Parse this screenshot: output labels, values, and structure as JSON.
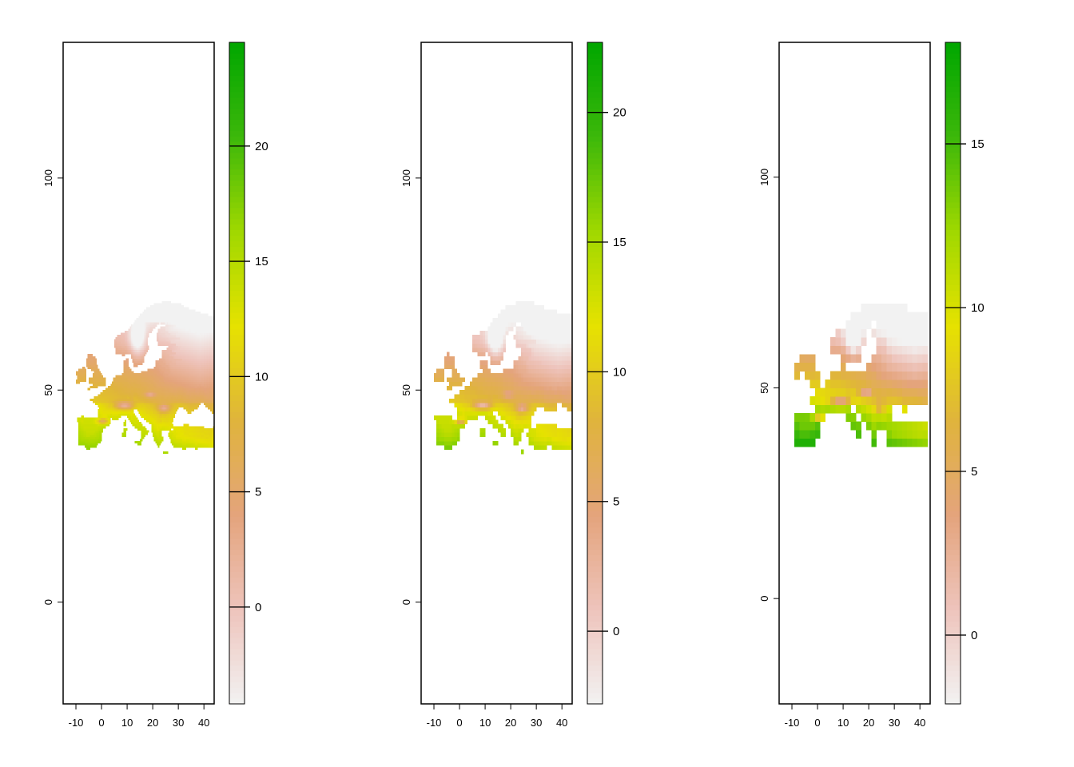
{
  "chart_data": [
    {
      "type": "heatmap",
      "title": "",
      "xlabel": "",
      "ylabel": "",
      "xlim": [
        -15,
        44
      ],
      "ylim": [
        -24,
        132
      ],
      "x_ticks": [
        -10,
        0,
        10,
        20,
        30,
        40
      ],
      "y_ticks": [
        0,
        50,
        100
      ],
      "resolution_deg": 0.5,
      "data_extent": {
        "x": [
          -11,
          44
        ],
        "y": [
          35,
          72
        ]
      },
      "legend": {
        "position": "right",
        "range": [
          -4.2,
          24.5
        ],
        "ticks": [
          0,
          5,
          10,
          15,
          20
        ]
      }
    },
    {
      "type": "heatmap",
      "title": "",
      "xlabel": "",
      "ylabel": "",
      "xlim": [
        -15,
        44
      ],
      "ylim": [
        -24,
        132
      ],
      "x_ticks": [
        -10,
        0,
        10,
        20,
        30,
        40
      ],
      "y_ticks": [
        0,
        50,
        100
      ],
      "resolution_deg": 1,
      "data_extent": {
        "x": [
          -10,
          44
        ],
        "y": [
          35,
          72
        ]
      },
      "legend": {
        "position": "right",
        "range": [
          -2.8,
          22.7
        ],
        "ticks": [
          0,
          5,
          10,
          15,
          20
        ]
      }
    },
    {
      "type": "heatmap",
      "title": "",
      "xlabel": "",
      "ylabel": "",
      "xlim": [
        -15,
        44
      ],
      "ylim": [
        -25,
        132
      ],
      "x_ticks": [
        -10,
        0,
        10,
        20,
        30,
        40
      ],
      "y_ticks": [
        0,
        50,
        100
      ],
      "resolution_deg": 2,
      "data_extent": {
        "x": [
          -9,
          44
        ],
        "y": [
          36,
          70
        ]
      },
      "legend": {
        "position": "right",
        "range": [
          -2.1,
          18.1
        ],
        "ticks": [
          0,
          5,
          10,
          15
        ]
      }
    }
  ],
  "colors": {
    "palette": [
      "#f2f2f2",
      "#eec4bc",
      "#e4a47c",
      "#e0b43c",
      "#e6e200",
      "#a0d800",
      "#3cb80a",
      "#00a600"
    ],
    "frame": "#000000",
    "no_data": "#ffffff"
  }
}
